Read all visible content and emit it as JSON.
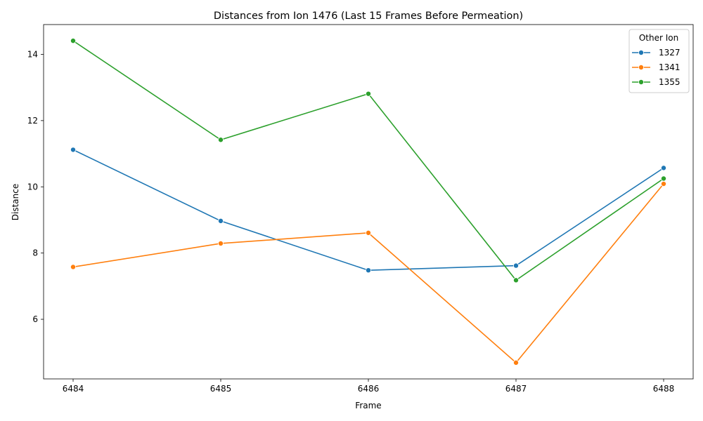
{
  "chart_data": {
    "type": "line",
    "title": "Distances from Ion 1476 (Last 15 Frames Before Permeation)",
    "xlabel": "Frame",
    "ylabel": "Distance",
    "x": [
      6484,
      6485,
      6486,
      6487,
      6488
    ],
    "x_ticks": [
      "6484",
      "6485",
      "6486",
      "6487",
      "6488"
    ],
    "y_ticks": [
      6,
      8,
      10,
      12,
      14
    ],
    "xlim": [
      6483.8,
      6488.2
    ],
    "ylim": [
      4.2,
      14.9
    ],
    "grid": false,
    "legend": {
      "title": "Other Ion",
      "position": "top-right"
    },
    "series": [
      {
        "name": "1327",
        "color": "#1f77b4",
        "values": [
          11.12,
          8.97,
          7.48,
          7.62,
          10.57
        ]
      },
      {
        "name": "1341",
        "color": "#ff7f0e",
        "values": [
          7.58,
          8.29,
          8.61,
          4.69,
          10.09
        ]
      },
      {
        "name": "1355",
        "color": "#2ca02c",
        "values": [
          14.41,
          11.42,
          12.81,
          7.18,
          10.25
        ]
      }
    ]
  }
}
